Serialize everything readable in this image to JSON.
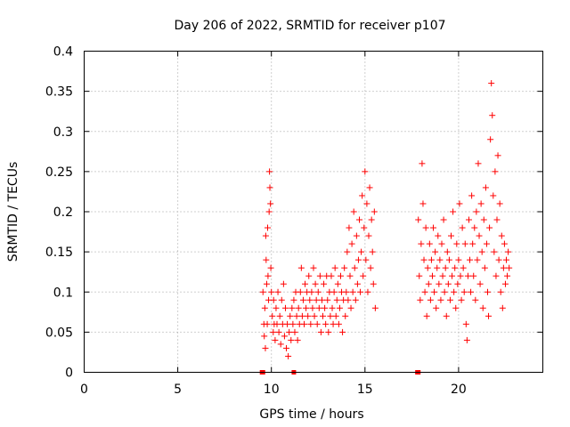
{
  "chart_data": {
    "type": "scatter",
    "title": "Day 206 of 2022, SRMTID for receiver p107",
    "xlabel": "GPS time / hours",
    "ylabel": "SRMTID / TECUs",
    "xlim": [
      0,
      24.5
    ],
    "ylim": [
      0,
      0.4
    ],
    "xticks": [
      0,
      5,
      10,
      15,
      20
    ],
    "yticks": [
      0,
      0.05,
      0.1,
      0.15,
      0.2,
      0.25,
      0.3,
      0.35,
      0.4
    ],
    "xtick_labels": [
      "0",
      "5",
      "10",
      "15",
      "20"
    ],
    "ytick_labels": [
      "0",
      "0.05",
      "0.1",
      "0.15",
      "0.2",
      "0.25",
      "0.3",
      "0.35",
      "0.4"
    ],
    "grid": true,
    "marker_color": "#ff0000",
    "zero_markers_x": [
      9.5,
      9.55,
      11.2,
      17.8,
      17.85
    ],
    "series": [
      {
        "name": "SRMTID",
        "points": [
          [
            9.55,
            0.1
          ],
          [
            9.6,
            0.06
          ],
          [
            9.62,
            0.045
          ],
          [
            9.65,
            0.08
          ],
          [
            9.68,
            0.03
          ],
          [
            9.7,
            0.17
          ],
          [
            9.72,
            0.14
          ],
          [
            9.75,
            0.11
          ],
          [
            9.78,
            0.06
          ],
          [
            9.8,
            0.18
          ],
          [
            9.82,
            0.12
          ],
          [
            9.85,
            0.09
          ],
          [
            9.88,
            0.2
          ],
          [
            9.9,
            0.25
          ],
          [
            9.92,
            0.23
          ],
          [
            9.95,
            0.21
          ],
          [
            9.97,
            0.13
          ],
          [
            10.0,
            0.1
          ],
          [
            10.05,
            0.07
          ],
          [
            10.1,
            0.05
          ],
          [
            10.12,
            0.09
          ],
          [
            10.15,
            0.06
          ],
          [
            10.2,
            0.04
          ],
          [
            10.25,
            0.08
          ],
          [
            10.3,
            0.06
          ],
          [
            10.35,
            0.1
          ],
          [
            10.4,
            0.05
          ],
          [
            10.45,
            0.07
          ],
          [
            10.5,
            0.035
          ],
          [
            10.55,
            0.09
          ],
          [
            10.6,
            0.06
          ],
          [
            10.65,
            0.11
          ],
          [
            10.7,
            0.045
          ],
          [
            10.75,
            0.08
          ],
          [
            10.8,
            0.03
          ],
          [
            10.85,
            0.06
          ],
          [
            10.9,
            0.02
          ],
          [
            10.95,
            0.05
          ],
          [
            11.0,
            0.07
          ],
          [
            11.05,
            0.04
          ],
          [
            11.1,
            0.08
          ],
          [
            11.15,
            0.06
          ],
          [
            11.2,
            0.09
          ],
          [
            11.25,
            0.05
          ],
          [
            11.3,
            0.1
          ],
          [
            11.35,
            0.07
          ],
          [
            11.4,
            0.04
          ],
          [
            11.45,
            0.08
          ],
          [
            11.5,
            0.06
          ],
          [
            11.55,
            0.1
          ],
          [
            11.6,
            0.13
          ],
          [
            11.65,
            0.07
          ],
          [
            11.7,
            0.09
          ],
          [
            11.75,
            0.06
          ],
          [
            11.8,
            0.11
          ],
          [
            11.85,
            0.08
          ],
          [
            11.9,
            0.1
          ],
          [
            11.95,
            0.07
          ],
          [
            12.0,
            0.12
          ],
          [
            12.05,
            0.09
          ],
          [
            12.1,
            0.06
          ],
          [
            12.15,
            0.1
          ],
          [
            12.2,
            0.08
          ],
          [
            12.25,
            0.13
          ],
          [
            12.3,
            0.07
          ],
          [
            12.35,
            0.11
          ],
          [
            12.4,
            0.09
          ],
          [
            12.45,
            0.06
          ],
          [
            12.5,
            0.1
          ],
          [
            12.55,
            0.08
          ],
          [
            12.6,
            0.12
          ],
          [
            12.65,
            0.05
          ],
          [
            12.7,
            0.09
          ],
          [
            12.75,
            0.07
          ],
          [
            12.8,
            0.11
          ],
          [
            12.85,
            0.08
          ],
          [
            12.9,
            0.06
          ],
          [
            12.95,
            0.12
          ],
          [
            13.0,
            0.09
          ],
          [
            13.05,
            0.05
          ],
          [
            13.1,
            0.1
          ],
          [
            13.15,
            0.07
          ],
          [
            13.2,
            0.12
          ],
          [
            13.25,
            0.08
          ],
          [
            13.3,
            0.06
          ],
          [
            13.35,
            0.1
          ],
          [
            13.4,
            0.13
          ],
          [
            13.45,
            0.07
          ],
          [
            13.5,
            0.09
          ],
          [
            13.55,
            0.11
          ],
          [
            13.6,
            0.06
          ],
          [
            13.65,
            0.08
          ],
          [
            13.7,
            0.12
          ],
          [
            13.75,
            0.1
          ],
          [
            13.8,
            0.05
          ],
          [
            13.85,
            0.09
          ],
          [
            13.9,
            0.13
          ],
          [
            13.95,
            0.07
          ],
          [
            14.0,
            0.1
          ],
          [
            14.05,
            0.15
          ],
          [
            14.1,
            0.09
          ],
          [
            14.15,
            0.18
          ],
          [
            14.2,
            0.12
          ],
          [
            14.25,
            0.08
          ],
          [
            14.3,
            0.16
          ],
          [
            14.35,
            0.1
          ],
          [
            14.4,
            0.2
          ],
          [
            14.45,
            0.13
          ],
          [
            14.5,
            0.09
          ],
          [
            14.55,
            0.17
          ],
          [
            14.6,
            0.11
          ],
          [
            14.65,
            0.14
          ],
          [
            14.7,
            0.19
          ],
          [
            14.75,
            0.1
          ],
          [
            14.8,
            0.15
          ],
          [
            14.85,
            0.22
          ],
          [
            14.9,
            0.12
          ],
          [
            14.95,
            0.18
          ],
          [
            15.0,
            0.25
          ],
          [
            15.05,
            0.14
          ],
          [
            15.1,
            0.21
          ],
          [
            15.15,
            0.1
          ],
          [
            15.2,
            0.17
          ],
          [
            15.25,
            0.23
          ],
          [
            15.3,
            0.13
          ],
          [
            15.35,
            0.19
          ],
          [
            15.4,
            0.15
          ],
          [
            15.45,
            0.11
          ],
          [
            15.5,
            0.2
          ],
          [
            15.55,
            0.08
          ],
          [
            17.85,
            0.19
          ],
          [
            17.9,
            0.12
          ],
          [
            17.95,
            0.09
          ],
          [
            18.0,
            0.16
          ],
          [
            18.05,
            0.26
          ],
          [
            18.1,
            0.21
          ],
          [
            18.15,
            0.14
          ],
          [
            18.2,
            0.1
          ],
          [
            18.25,
            0.18
          ],
          [
            18.3,
            0.07
          ],
          [
            18.35,
            0.13
          ],
          [
            18.4,
            0.11
          ],
          [
            18.45,
            0.16
          ],
          [
            18.5,
            0.09
          ],
          [
            18.55,
            0.14
          ],
          [
            18.6,
            0.12
          ],
          [
            18.65,
            0.18
          ],
          [
            18.7,
            0.1
          ],
          [
            18.75,
            0.15
          ],
          [
            18.8,
            0.08
          ],
          [
            18.85,
            0.13
          ],
          [
            18.9,
            0.17
          ],
          [
            18.95,
            0.11
          ],
          [
            19.0,
            0.14
          ],
          [
            19.05,
            0.09
          ],
          [
            19.1,
            0.16
          ],
          [
            19.15,
            0.12
          ],
          [
            19.2,
            0.19
          ],
          [
            19.25,
            0.1
          ],
          [
            19.3,
            0.13
          ],
          [
            19.35,
            0.07
          ],
          [
            19.4,
            0.15
          ],
          [
            19.45,
            0.11
          ],
          [
            19.5,
            0.14
          ],
          [
            19.55,
            0.09
          ],
          [
            19.6,
            0.17
          ],
          [
            19.65,
            0.12
          ],
          [
            19.7,
            0.2
          ],
          [
            19.75,
            0.1
          ],
          [
            19.8,
            0.13
          ],
          [
            19.85,
            0.08
          ],
          [
            19.9,
            0.16
          ],
          [
            19.95,
            0.11
          ],
          [
            20.0,
            0.14
          ],
          [
            20.05,
            0.21
          ],
          [
            20.1,
            0.12
          ],
          [
            20.15,
            0.09
          ],
          [
            20.2,
            0.18
          ],
          [
            20.25,
            0.13
          ],
          [
            20.3,
            0.1
          ],
          [
            20.35,
            0.16
          ],
          [
            20.4,
            0.06
          ],
          [
            20.45,
            0.04
          ],
          [
            20.5,
            0.12
          ],
          [
            20.55,
            0.19
          ],
          [
            20.6,
            0.14
          ],
          [
            20.65,
            0.1
          ],
          [
            20.7,
            0.22
          ],
          [
            20.75,
            0.16
          ],
          [
            20.8,
            0.12
          ],
          [
            20.85,
            0.18
          ],
          [
            20.9,
            0.09
          ],
          [
            20.95,
            0.2
          ],
          [
            21.0,
            0.14
          ],
          [
            21.05,
            0.26
          ],
          [
            21.1,
            0.17
          ],
          [
            21.15,
            0.11
          ],
          [
            21.2,
            0.21
          ],
          [
            21.25,
            0.15
          ],
          [
            21.3,
            0.08
          ],
          [
            21.35,
            0.19
          ],
          [
            21.4,
            0.13
          ],
          [
            21.45,
            0.23
          ],
          [
            21.5,
            0.16
          ],
          [
            21.55,
            0.1
          ],
          [
            21.6,
            0.07
          ],
          [
            21.65,
            0.18
          ],
          [
            21.7,
            0.29
          ],
          [
            21.75,
            0.36
          ],
          [
            21.8,
            0.32
          ],
          [
            21.85,
            0.22
          ],
          [
            21.9,
            0.15
          ],
          [
            21.95,
            0.25
          ],
          [
            22.0,
            0.12
          ],
          [
            22.05,
            0.19
          ],
          [
            22.1,
            0.27
          ],
          [
            22.15,
            0.14
          ],
          [
            22.2,
            0.21
          ],
          [
            22.25,
            0.1
          ],
          [
            22.3,
            0.17
          ],
          [
            22.35,
            0.08
          ],
          [
            22.4,
            0.13
          ],
          [
            22.45,
            0.16
          ],
          [
            22.5,
            0.11
          ],
          [
            22.55,
            0.14
          ],
          [
            22.6,
            0.12
          ],
          [
            22.65,
            0.15
          ],
          [
            22.7,
            0.13
          ]
        ]
      }
    ]
  }
}
